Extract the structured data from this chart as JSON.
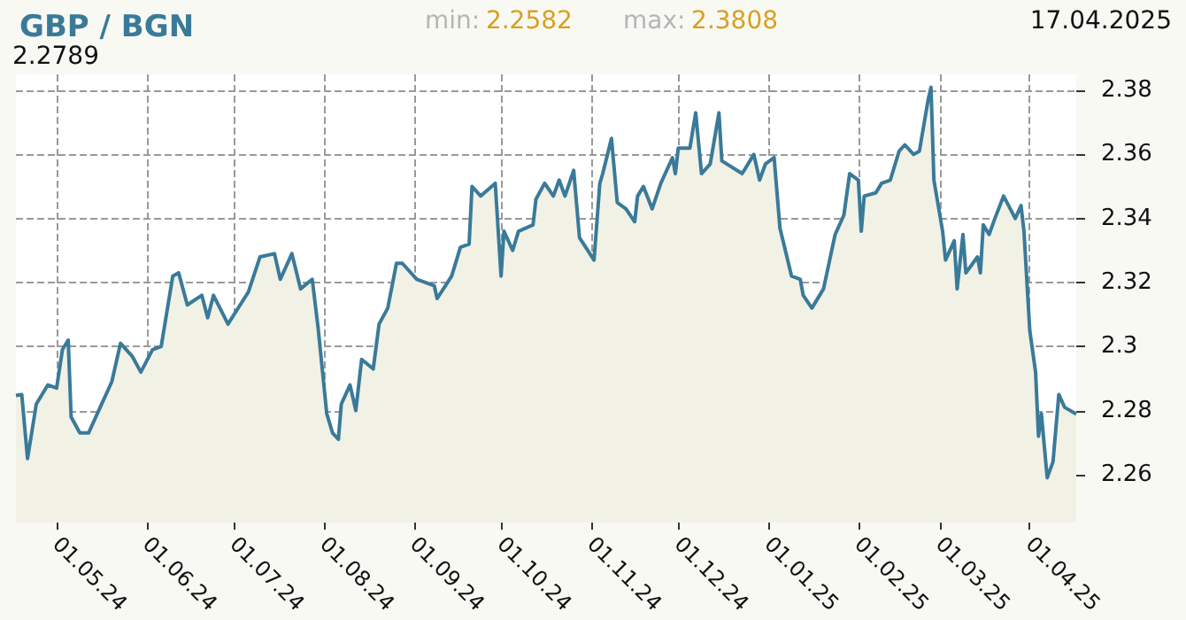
{
  "chart_data": {
    "type": "area",
    "title": "GBP / BGN",
    "annotations": [
      "min: 2.2582",
      "max: 2.3808",
      "17.04.2025",
      "2.2789"
    ],
    "x": [
      "2024-04-17",
      "2024-04-19",
      "2024-04-21",
      "2024-04-24",
      "2024-04-28",
      "2024-05-01",
      "2024-05-03",
      "2024-05-05",
      "2024-05-06",
      "2024-05-09",
      "2024-05-12",
      "2024-05-16",
      "2024-05-20",
      "2024-05-23",
      "2024-05-27",
      "2024-05-30",
      "2024-06-03",
      "2024-06-06",
      "2024-06-10",
      "2024-06-12",
      "2024-06-15",
      "2024-06-20",
      "2024-06-22",
      "2024-06-24",
      "2024-06-29",
      "2024-07-06",
      "2024-07-10",
      "2024-07-15",
      "2024-07-17",
      "2024-07-21",
      "2024-07-24",
      "2024-07-28",
      "2024-07-30",
      "2024-08-02",
      "2024-08-04",
      "2024-08-06",
      "2024-08-07",
      "2024-08-10",
      "2024-08-12",
      "2024-08-14",
      "2024-08-18",
      "2024-08-20",
      "2024-08-23",
      "2024-08-26",
      "2024-08-28",
      "2024-09-02",
      "2024-09-08",
      "2024-09-09",
      "2024-09-14",
      "2024-09-17",
      "2024-09-20",
      "2024-09-21",
      "2024-09-24",
      "2024-09-29",
      "2024-10-01",
      "2024-10-02",
      "2024-10-05",
      "2024-10-07",
      "2024-10-12",
      "2024-10-13",
      "2024-10-16",
      "2024-10-19",
      "2024-10-21",
      "2024-10-23",
      "2024-10-26",
      "2024-10-28",
      "2024-11-02",
      "2024-11-04",
      "2024-11-05",
      "2024-11-08",
      "2024-11-10",
      "2024-11-13",
      "2024-11-16",
      "2024-11-17",
      "2024-11-19",
      "2024-11-22",
      "2024-11-25",
      "2024-11-29",
      "2024-11-30",
      "2024-12-01",
      "2024-12-05",
      "2024-12-07",
      "2024-12-09",
      "2024-12-12",
      "2024-12-15",
      "2024-12-16",
      "2024-12-23",
      "2024-12-27",
      "2024-12-29",
      "2024-12-31",
      "2025-01-03",
      "2025-01-05",
      "2025-01-09",
      "2025-01-12",
      "2025-01-13",
      "2025-01-16",
      "2025-01-20",
      "2025-01-24",
      "2025-01-27",
      "2025-01-29",
      "2025-02-01",
      "2025-02-02",
      "2025-02-03",
      "2025-02-07",
      "2025-02-09",
      "2025-02-12",
      "2025-02-15",
      "2025-02-17",
      "2025-02-20",
      "2025-02-22",
      "2025-02-25",
      "2025-02-26",
      "2025-02-27",
      "2025-03-02",
      "2025-03-03",
      "2025-03-06",
      "2025-03-07",
      "2025-03-09",
      "2025-03-10",
      "2025-03-14",
      "2025-03-15",
      "2025-03-16",
      "2025-03-18",
      "2025-03-20",
      "2025-03-23",
      "2025-03-27",
      "2025-03-29",
      "2025-03-30",
      "2025-04-01",
      "2025-04-03",
      "2025-04-04",
      "2025-04-05",
      "2025-04-07",
      "2025-04-09",
      "2025-04-11",
      "2025-04-13",
      "2025-04-17"
    ],
    "series": [
      {
        "color": "#3a7a99",
        "values": [
          2.2847,
          2.285,
          2.265,
          2.282,
          2.288,
          2.287,
          2.299,
          2.302,
          2.278,
          2.273,
          2.273,
          2.281,
          2.289,
          2.301,
          2.297,
          2.292,
          2.299,
          2.3,
          2.322,
          2.323,
          2.313,
          2.316,
          2.309,
          2.316,
          2.307,
          2.317,
          2.328,
          2.329,
          2.321,
          2.329,
          2.318,
          2.321,
          2.306,
          2.279,
          2.273,
          2.271,
          2.282,
          2.288,
          2.28,
          2.296,
          2.293,
          2.307,
          2.312,
          2.326,
          2.326,
          2.321,
          2.319,
          2.315,
          2.322,
          2.331,
          2.332,
          2.35,
          2.347,
          2.351,
          2.322,
          2.336,
          2.33,
          2.336,
          2.338,
          2.346,
          2.351,
          2.347,
          2.352,
          2.347,
          2.355,
          2.334,
          2.327,
          2.351,
          2.354,
          2.365,
          2.345,
          2.343,
          2.339,
          2.347,
          2.35,
          2.343,
          2.351,
          2.359,
          2.354,
          2.362,
          2.362,
          2.373,
          2.354,
          2.357,
          2.373,
          2.358,
          2.354,
          2.36,
          2.352,
          2.357,
          2.359,
          2.337,
          2.322,
          2.321,
          2.316,
          2.312,
          2.318,
          2.335,
          2.341,
          2.354,
          2.352,
          2.336,
          2.347,
          2.348,
          2.351,
          2.352,
          2.361,
          2.363,
          2.36,
          2.361,
          2.377,
          2.381,
          2.352,
          2.336,
          2.327,
          2.333,
          2.318,
          2.335,
          2.323,
          2.328,
          2.323,
          2.338,
          2.335,
          2.34,
          2.347,
          2.34,
          2.344,
          2.336,
          2.305,
          2.292,
          2.272,
          2.279,
          2.259,
          2.264,
          2.285,
          2.281,
          2.2789
        ]
      }
    ],
    "xlim": [
      "2024-04-17",
      "2025-04-17"
    ],
    "xticks": [
      {
        "value": "2024-05-01",
        "label": "01.05.24"
      },
      {
        "value": "2024-06-01",
        "label": "01.06.24"
      },
      {
        "value": "2024-07-01",
        "label": "01.07.24"
      },
      {
        "value": "2024-08-01",
        "label": "01.08.24"
      },
      {
        "value": "2024-09-01",
        "label": "01.09.24"
      },
      {
        "value": "2024-10-01",
        "label": "01.10.24"
      },
      {
        "value": "2024-11-01",
        "label": "01.11.24"
      },
      {
        "value": "2024-12-01",
        "label": "01.12.24"
      },
      {
        "value": "2025-01-01",
        "label": "01.01.25"
      },
      {
        "value": "2025-02-01",
        "label": "01.02.25"
      },
      {
        "value": "2025-03-01",
        "label": "01.03.25"
      },
      {
        "value": "2025-04-01",
        "label": "01.04.25"
      }
    ],
    "ylim": [
      2.245,
      2.385
    ],
    "yticks": [
      2.26,
      2.28,
      2.3,
      2.32,
      2.34,
      2.36,
      2.38
    ],
    "grid": true,
    "marker": "none",
    "line_style": "solid"
  }
}
